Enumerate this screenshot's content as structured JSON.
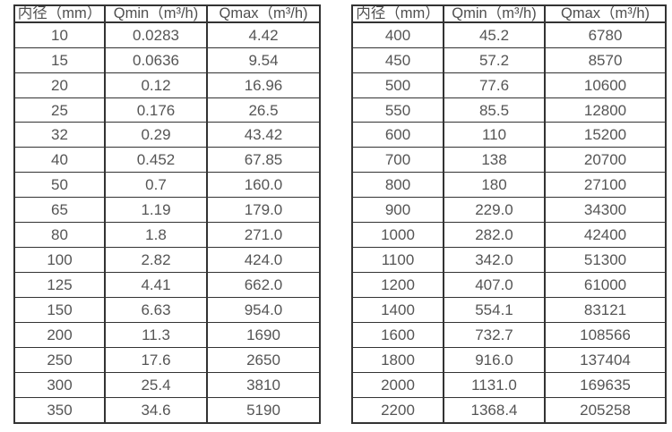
{
  "colors": {
    "border": "#333333",
    "text": "#555555",
    "background": "#ffffff"
  },
  "left_table": {
    "headers": [
      "内径（mm）",
      "Qmin（m³/h)",
      "Qmax（m³/h)"
    ],
    "rows": [
      [
        "10",
        "0.0283",
        "4.42"
      ],
      [
        "15",
        "0.0636",
        "9.54"
      ],
      [
        "20",
        "0.12",
        "16.96"
      ],
      [
        "25",
        "0.176",
        "26.5"
      ],
      [
        "32",
        "0.29",
        "43.42"
      ],
      [
        "40",
        "0.452",
        "67.85"
      ],
      [
        "50",
        "0.7",
        "160.0"
      ],
      [
        "65",
        "1.19",
        "179.0"
      ],
      [
        "80",
        "1.8",
        "271.0"
      ],
      [
        "100",
        "2.82",
        "424.0"
      ],
      [
        "125",
        "4.41",
        "662.0"
      ],
      [
        "150",
        "6.63",
        "954.0"
      ],
      [
        "200",
        "11.3",
        "1690"
      ],
      [
        "250",
        "17.6",
        "2650"
      ],
      [
        "300",
        "25.4",
        "3810"
      ],
      [
        "350",
        "34.6",
        "5190"
      ]
    ]
  },
  "right_table": {
    "headers": [
      "内径（mm）",
      "Qmin（m³/h)",
      "Qmax（m³/h)"
    ],
    "rows": [
      [
        "400",
        "45.2",
        "6780"
      ],
      [
        "450",
        "57.2",
        "8570"
      ],
      [
        "500",
        "77.6",
        "10600"
      ],
      [
        "550",
        "85.5",
        "12800"
      ],
      [
        "600",
        "110",
        "15200"
      ],
      [
        "700",
        "138",
        "20700"
      ],
      [
        "800",
        "180",
        "27100"
      ],
      [
        "900",
        "229.0",
        "34300"
      ],
      [
        "1000",
        "282.0",
        "42400"
      ],
      [
        "1100",
        "342.0",
        "51300"
      ],
      [
        "1200",
        "407.0",
        "61000"
      ],
      [
        "1400",
        "554.1",
        "83121"
      ],
      [
        "1600",
        "732.7",
        "108566"
      ],
      [
        "1800",
        "916.0",
        "137404"
      ],
      [
        "2000",
        "1131.0",
        "169635"
      ],
      [
        "2200",
        "1368.4",
        "205258"
      ]
    ]
  }
}
